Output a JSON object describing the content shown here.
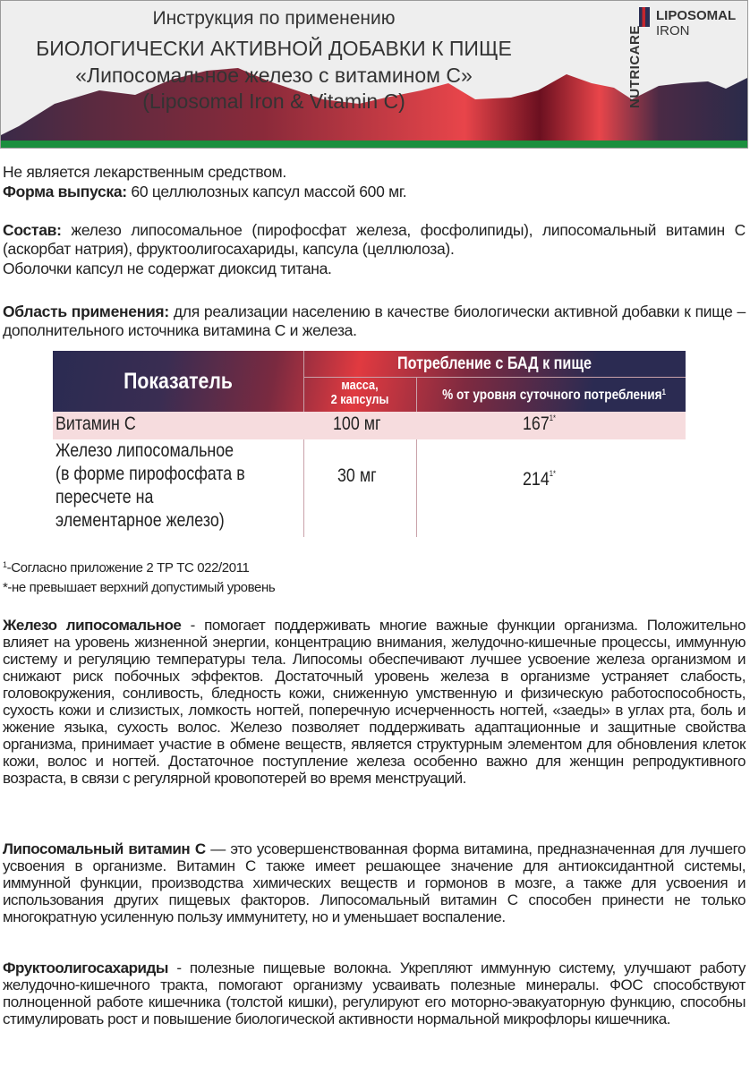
{
  "header": {
    "title_lines": [
      "Инструкция по применению",
      "БИОЛОГИЧЕСКИ АКТИВНОЙ ДОБАВКИ К ПИЩЕ",
      "«Липосомальное железо с витамином С»",
      "(Liposomal Iron & Vitamin C)"
    ],
    "logo": {
      "brand": "NUTRICARE",
      "line1": "LIPOSOMAL",
      "line2": "IRON"
    },
    "colors": {
      "green": "#1b8f3e",
      "red": "#e13a40",
      "navy": "#2a2b52"
    }
  },
  "intro": {
    "not_medicine": "Не является лекарственным средством.",
    "form_label": "Форма выпуска:",
    "form_text": " 60 целлюлозных капсул массой 600 мг.",
    "composition_label": "Состав:",
    "composition_text": " железо липосомальное (пирофосфат железа, фосфолипиды), липосомальный витамин С (аскорбат натрия), фруктоолигосахариды, капсула (целлюлоза).",
    "shell_note": "Оболочки капсул не содержат диоксид титана.",
    "area_label": "Область применения:",
    "area_text": " для реализации населению в качестве биологически активной добавки к пище –дополнительного источника витамина С и железа."
  },
  "table": {
    "col_indicator": "Показатель",
    "col_group": "Потребление с БАД к пище",
    "col_mass": [
      "масса,",
      "2 капсулы"
    ],
    "col_percent": "% от уровня суточного потребления",
    "col_percent_sup": "1",
    "rows": [
      {
        "name": [
          "Витамин С"
        ],
        "mass": "100 мг",
        "percent": "167",
        "sup": "1*"
      },
      {
        "name": [
          "Железо липосомальное",
          "(в форме пирофосфата в",
          "пересчете на",
          "элементарное железо)"
        ],
        "mass": "30 мг",
        "percent": "214",
        "sup": "1*"
      }
    ]
  },
  "footnotes": [
    {
      "sup": "1",
      "text": "-Согласно приложение 2 ТР ТС 022/2011"
    },
    {
      "sup": "",
      "text": "*-не превышает верхний допустимый уровень"
    }
  ],
  "sections": [
    {
      "label": "Железо липосомальное",
      "text": " - помогает поддерживать многие важные функции организма. Положительно влияет на уровень жизненной энергии, концентрацию внимания, желудочно-кишечные процессы, иммунную систему и регуляцию температуры тела. Липосомы обеспечивают лучшее усвоение железа организмом и снижают риск побочных эффектов. Достаточный уровень железа в организме устраняет слабость, головокружения, сонливость, бледность кожи, сниженную умственную и физическую работоспособность, сухость кожи и слизистых, ломкость ногтей, поперечную исчерченность ногтей, «заеды» в углах рта, боль и жжение языка, сухость волос. Железо позволяет поддерживать адаптационные и защитные свойства организма, принимает участие в обмене веществ, является структурным элементом для обновления клеток кожи, волос и ногтей. Достаточное поступление железа особенно важно для женщин репродуктивного возраста, в связи с регулярной кровопотерей во время менструаций."
    },
    {
      "label": "Липосомальный витамин С",
      "text": " — это усовершенствованная форма витамина, предназначенная для лучшего усвоения в организме. Витамин С также имеет решающее значение для антиоксидантной системы, иммунной функции, производства химических веществ и гормонов в мозге, а также для усвоения и использования других пищевых факторов. Липосомальный витамин С способен принести не только многократную усиленную пользу иммунитету, но и уменьшает воспаление."
    },
    {
      "label": "Фруктоолигосахариды",
      "text": " - полезные пищевые волокна. Укрепляют иммунную систему, улучшают работу желудочно-кишечного тракта, помогают организму усваивать полезные минералы. ФОС способствуют полноценной работе кишечника (толстой кишки), регулируют его моторно-эвакуаторную функцию, способны стимулировать рост и повышение биологической активности нормальной микрофлоры кишечника."
    }
  ]
}
